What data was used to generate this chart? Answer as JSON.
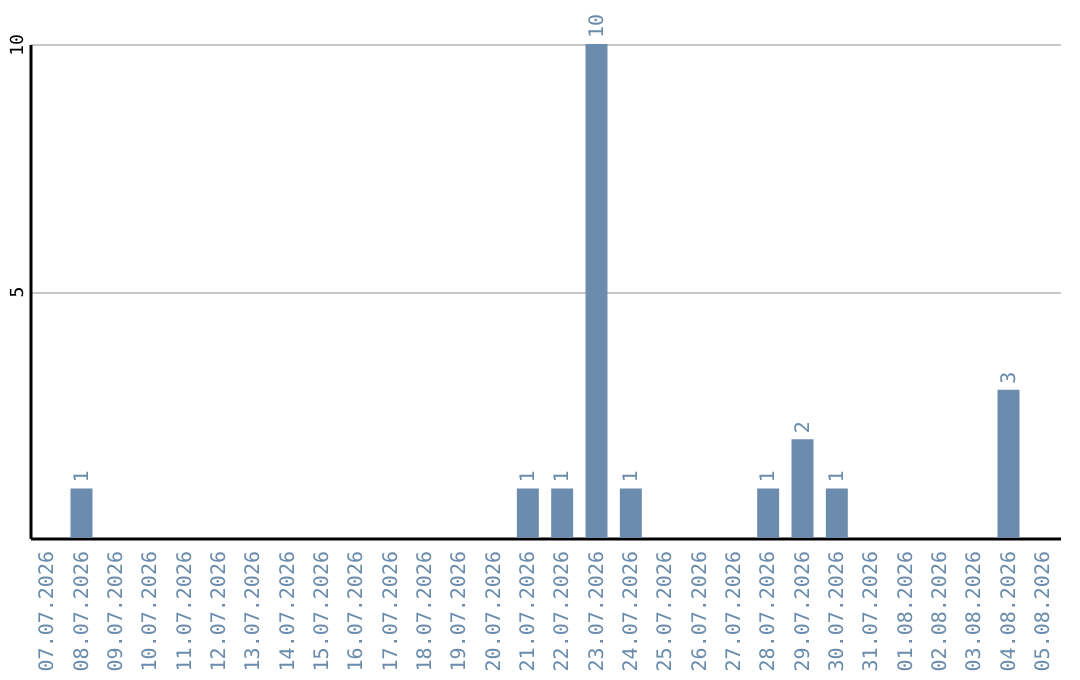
{
  "chart_data": {
    "type": "bar",
    "categories": [
      "07.07.2026",
      "08.07.2026",
      "09.07.2026",
      "10.07.2026",
      "11.07.2026",
      "12.07.2026",
      "13.07.2026",
      "14.07.2026",
      "15.07.2026",
      "16.07.2026",
      "17.07.2026",
      "18.07.2026",
      "19.07.2026",
      "20.07.2026",
      "21.07.2026",
      "22.07.2026",
      "23.07.2026",
      "24.07.2026",
      "25.07.2026",
      "26.07.2026",
      "27.07.2026",
      "28.07.2026",
      "29.07.2026",
      "30.07.2026",
      "31.07.2026",
      "01.08.2026",
      "02.08.2026",
      "03.08.2026",
      "04.08.2026",
      "05.08.2026"
    ],
    "values": [
      0,
      1,
      0,
      0,
      0,
      0,
      0,
      0,
      0,
      0,
      0,
      0,
      0,
      0,
      1,
      1,
      10,
      1,
      0,
      0,
      0,
      1,
      2,
      1,
      0,
      0,
      0,
      0,
      3,
      0
    ],
    "value_labels": [
      null,
      "1",
      null,
      null,
      null,
      null,
      null,
      null,
      null,
      null,
      null,
      null,
      null,
      null,
      "1",
      "1",
      "10",
      "1",
      null,
      null,
      null,
      "1",
      "2",
      "1",
      null,
      null,
      null,
      null,
      "3",
      null
    ],
    "color": "#6b8cac",
    "ylim": [
      0,
      10
    ],
    "yticks": [
      5,
      10
    ],
    "grid": "y"
  }
}
